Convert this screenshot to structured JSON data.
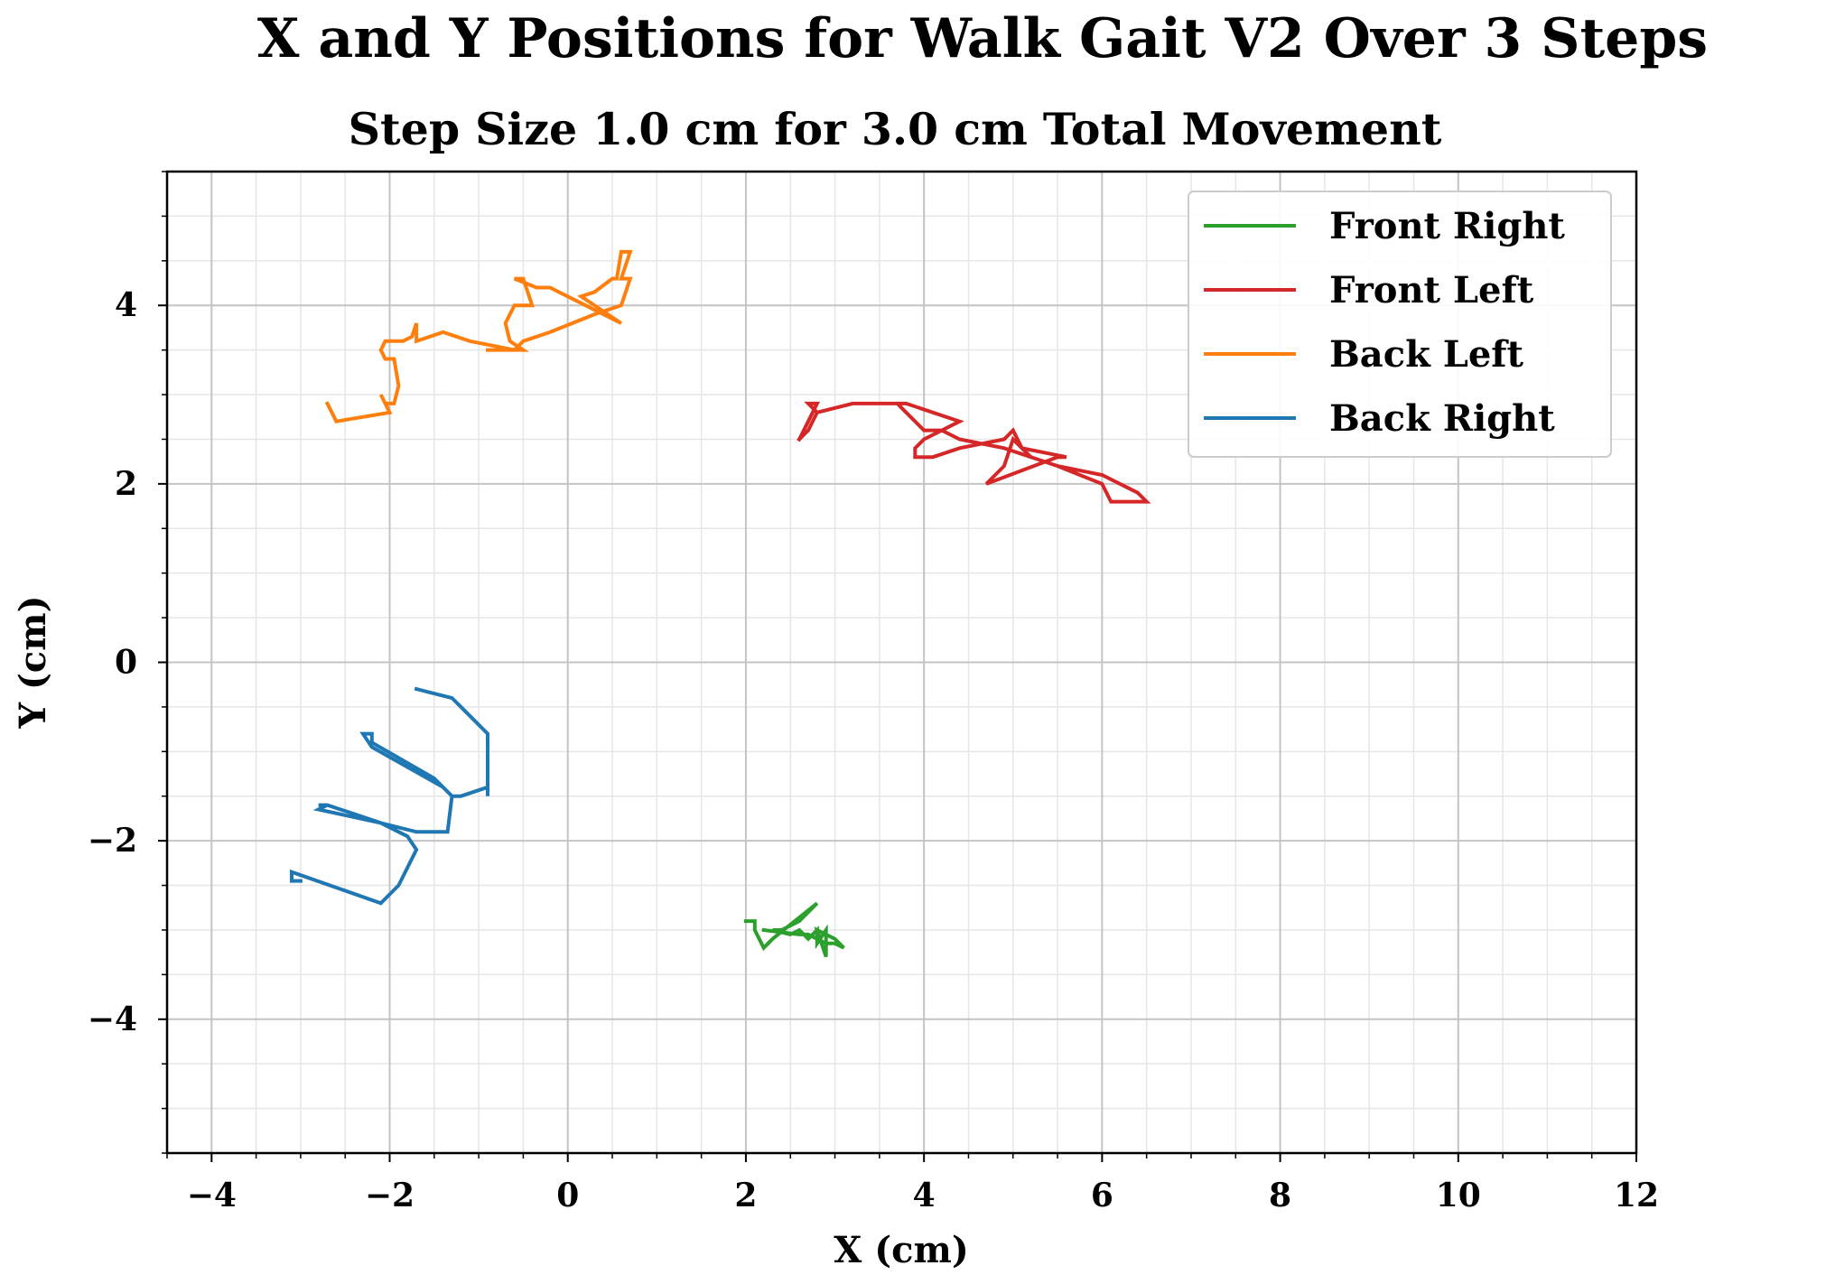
{
  "chart_data": {
    "type": "line",
    "title": "X and Y Positions for Walk Gait V2 Over 3 Steps",
    "subtitle": "Step Size 1.0 cm for 3.0 cm Total Movement",
    "xlabel": "X (cm)",
    "ylabel": "Y (cm)",
    "xlim": [
      -4.5,
      12
    ],
    "ylim": [
      -5.5,
      5.5
    ],
    "xticks": [
      -4,
      -2,
      0,
      2,
      4,
      6,
      8,
      10,
      12
    ],
    "xtick_labels": [
      "−4",
      "−2",
      "0",
      "2",
      "4",
      "6",
      "8",
      "10",
      "12"
    ],
    "yticks": [
      -4,
      -2,
      0,
      2,
      4
    ],
    "ytick_labels": [
      "−4",
      "−2",
      "0",
      "2",
      "4"
    ],
    "x_minor_step": 0.5,
    "y_minor_step": 0.5,
    "grid": true,
    "legend_position": "top-right",
    "series": [
      {
        "name": "Front Right",
        "color": "#2ca02c",
        "x": [
          2.0,
          2.1,
          2.1,
          2.2,
          2.3,
          2.8,
          2.6,
          2.4,
          2.3,
          2.5,
          2.6,
          2.7,
          2.8,
          2.8,
          2.9,
          2.9,
          2.8,
          2.9,
          3.0,
          3.1,
          3.0,
          2.9,
          2.8,
          2.7,
          2.6,
          2.2
        ],
        "y": [
          -2.9,
          -2.9,
          -3.0,
          -3.2,
          -3.1,
          -2.7,
          -2.9,
          -3.0,
          -3.0,
          -3.05,
          -3.0,
          -3.1,
          -3.0,
          -3.15,
          -3.0,
          -3.3,
          -3.0,
          -3.05,
          -3.1,
          -3.2,
          -3.15,
          -3.15,
          -3.1,
          -3.05,
          -3.05,
          -3.0
        ]
      },
      {
        "name": "Front Left",
        "color": "#d62728",
        "x": [
          2.6,
          2.7,
          2.8,
          2.7,
          2.8,
          3.2,
          3.8,
          4.4,
          4.2,
          4.0,
          3.9,
          3.9,
          4.1,
          4.4,
          4.9,
          5.0,
          5.1,
          5.6,
          5.5,
          4.7,
          4.9,
          5.0,
          5.2,
          5.5,
          6.0,
          6.4,
          6.5,
          6.2,
          6.1,
          6.0,
          5.5,
          4.9,
          4.4,
          4.2,
          4.0,
          3.9,
          3.8,
          3.7,
          3.2,
          2.8,
          2.7,
          2.6
        ],
        "y": [
          2.5,
          2.7,
          2.9,
          2.9,
          2.8,
          2.9,
          2.9,
          2.7,
          2.6,
          2.5,
          2.4,
          2.3,
          2.3,
          2.4,
          2.5,
          2.6,
          2.4,
          2.3,
          2.3,
          2.0,
          2.2,
          2.5,
          2.3,
          2.2,
          2.1,
          1.9,
          1.8,
          1.8,
          1.8,
          2.0,
          2.2,
          2.4,
          2.5,
          2.6,
          2.6,
          2.7,
          2.8,
          2.9,
          2.9,
          2.8,
          2.6,
          2.5
        ]
      },
      {
        "name": "Back Left",
        "color": "#ff7f0e",
        "x": [
          -2.7,
          -2.6,
          -2.0,
          -2.1,
          -2.05,
          -1.95,
          -1.9,
          -1.95,
          -2.05,
          -2.1,
          -2.05,
          -1.85,
          -1.75,
          -1.7,
          -1.7,
          -1.4,
          -1.1,
          -0.6,
          -0.5,
          -0.65,
          -0.7,
          -0.6,
          -0.4,
          -0.5,
          -0.6,
          -0.35,
          -0.2,
          0.2,
          0.6,
          0.15,
          0.3,
          0.5,
          0.55,
          0.6,
          0.7,
          0.6,
          0.7,
          0.6,
          0.3,
          -0.2,
          -0.5,
          -0.6,
          -0.9
        ],
        "y": [
          2.9,
          2.7,
          2.8,
          3.0,
          2.9,
          2.9,
          3.1,
          3.4,
          3.4,
          3.5,
          3.6,
          3.6,
          3.65,
          3.8,
          3.6,
          3.7,
          3.6,
          3.5,
          3.5,
          3.6,
          3.8,
          4.0,
          4.0,
          4.3,
          4.3,
          4.2,
          4.2,
          4.0,
          3.8,
          4.1,
          4.15,
          4.3,
          4.3,
          4.6,
          4.6,
          4.3,
          4.3,
          4.0,
          3.9,
          3.7,
          3.6,
          3.5,
          3.5
        ]
      },
      {
        "name": "Back Right",
        "color": "#1f77b4",
        "x": [
          -3.0,
          -3.1,
          -3.1,
          -2.1,
          -1.9,
          -1.7,
          -1.8,
          -2.1,
          -2.7,
          -2.8,
          -2.7,
          -2.8,
          -2.1,
          -1.7,
          -1.35,
          -1.3,
          -1.4,
          -2.2,
          -2.3,
          -2.2,
          -2.2,
          -1.5,
          -1.3,
          -1.2,
          -0.9,
          -0.9,
          -0.9,
          -1.3,
          -1.7
        ],
        "y": [
          -2.45,
          -2.45,
          -2.35,
          -2.7,
          -2.5,
          -2.1,
          -1.95,
          -1.8,
          -1.6,
          -1.6,
          -1.6,
          -1.65,
          -1.8,
          -1.9,
          -1.9,
          -1.5,
          -1.4,
          -0.95,
          -0.8,
          -0.8,
          -0.9,
          -1.3,
          -1.5,
          -1.5,
          -1.4,
          -1.5,
          -0.8,
          -0.4,
          -0.3
        ]
      }
    ]
  }
}
